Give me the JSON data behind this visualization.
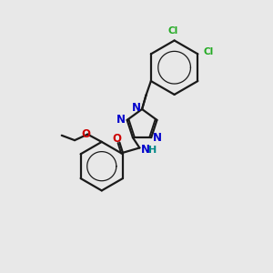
{
  "background_color": "#e8e8e8",
  "bond_color": "#1a1a1a",
  "nitrogen_color": "#0000cc",
  "oxygen_color": "#cc0000",
  "chlorine_color": "#22aa22",
  "figsize": [
    3.0,
    3.0
  ],
  "dpi": 100,
  "lw": 1.6,
  "xlim": [
    0,
    10
  ],
  "ylim": [
    0,
    10
  ]
}
